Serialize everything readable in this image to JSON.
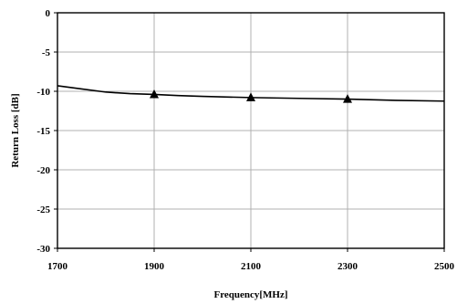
{
  "chart_data": {
    "type": "line",
    "xlabel": "Frequency[MHz]",
    "ylabel": "Return Loss [dB]",
    "xlim": [
      1700,
      2500
    ],
    "ylim": [
      -30,
      0
    ],
    "x_ticks": [
      1700,
      1900,
      2100,
      2300,
      2500
    ],
    "y_ticks": [
      0,
      -5,
      -10,
      -15,
      -20,
      -25,
      -30
    ],
    "grid": true,
    "series": [
      {
        "marker": "none",
        "x": [
          1700,
          1750,
          1800,
          1850,
          1900,
          1950,
          2000,
          2100,
          2200,
          2300,
          2400,
          2500
        ],
        "y": [
          -9.3,
          -9.7,
          -10.1,
          -10.3,
          -10.4,
          -10.55,
          -10.65,
          -10.8,
          -10.9,
          -11.0,
          -11.15,
          -11.25
        ]
      },
      {
        "marker": "triangle",
        "x": [
          1900,
          2100,
          2300
        ],
        "y": [
          -10.4,
          -10.8,
          -11.0
        ]
      }
    ]
  }
}
